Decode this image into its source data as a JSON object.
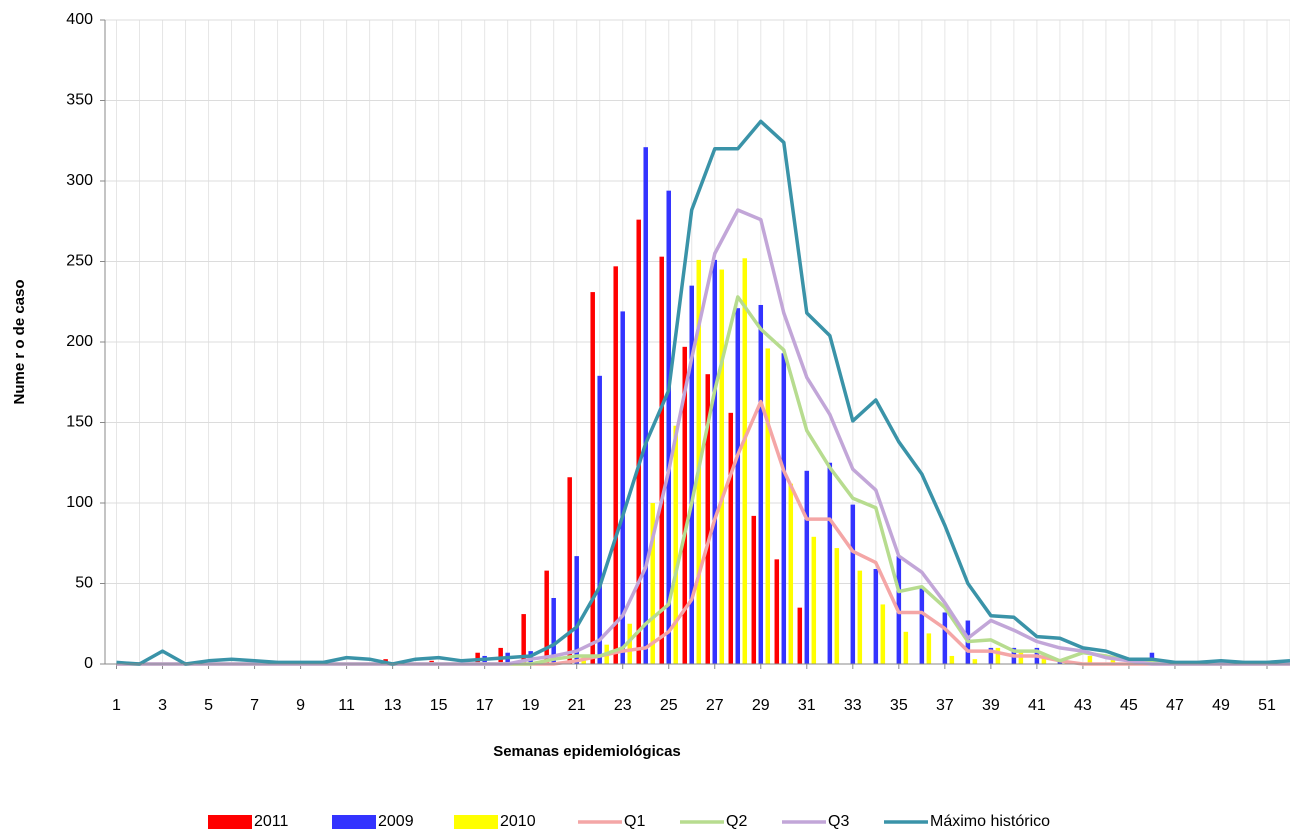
{
  "chart_data": {
    "type": "combo",
    "x_label": "Semanas epidemiológicas",
    "y_label": "Nume r o de caso",
    "x": [
      1,
      2,
      3,
      4,
      5,
      6,
      7,
      8,
      9,
      10,
      11,
      12,
      13,
      14,
      15,
      16,
      17,
      18,
      19,
      20,
      21,
      22,
      23,
      24,
      25,
      26,
      27,
      28,
      29,
      30,
      31,
      32,
      33,
      34,
      35,
      36,
      37,
      38,
      39,
      40,
      41,
      42,
      43,
      44,
      45,
      46,
      47,
      48,
      49,
      50,
      51,
      52
    ],
    "xlim": [
      0.5,
      52
    ],
    "xticks": [
      1,
      3,
      5,
      7,
      9,
      11,
      13,
      15,
      17,
      19,
      21,
      23,
      25,
      27,
      29,
      31,
      33,
      35,
      37,
      39,
      41,
      43,
      45,
      47,
      49,
      51
    ],
    "ylim": [
      0,
      400
    ],
    "yticks": [
      0,
      50,
      100,
      150,
      200,
      250,
      300,
      350,
      400
    ],
    "grid": true,
    "legend": "bottom",
    "series": [
      {
        "name": "2011",
        "type": "bar",
        "color": "#ff0000",
        "values": [
          0,
          0,
          0,
          0,
          0,
          0,
          0,
          0,
          0,
          0,
          0,
          0,
          3,
          0,
          2,
          0,
          7,
          10,
          31,
          58,
          116,
          231,
          247,
          276,
          253,
          197,
          180,
          156,
          92,
          65,
          35,
          0,
          0,
          0,
          0,
          0,
          0,
          0,
          0,
          0,
          0,
          0,
          0,
          0,
          0,
          0,
          0,
          0,
          0,
          0,
          0,
          0
        ]
      },
      {
        "name": "2009",
        "type": "bar",
        "color": "#3333ff",
        "values": [
          0,
          0,
          0,
          0,
          0,
          0,
          0,
          0,
          0,
          0,
          0,
          0,
          0,
          0,
          0,
          0,
          5,
          7,
          8,
          41,
          67,
          179,
          219,
          321,
          294,
          235,
          251,
          221,
          223,
          193,
          120,
          125,
          99,
          59,
          67,
          47,
          32,
          27,
          10,
          10,
          10,
          2,
          0,
          0,
          0,
          7,
          0,
          0,
          0,
          0,
          0,
          0
        ]
      },
      {
        "name": "2010",
        "type": "bar",
        "color": "#ffff00",
        "values": [
          0,
          0,
          0,
          0,
          0,
          0,
          0,
          0,
          0,
          0,
          0,
          0,
          0,
          0,
          0,
          0,
          0,
          0,
          0,
          0,
          5,
          12,
          25,
          100,
          148,
          251,
          245,
          252,
          196,
          112,
          79,
          72,
          58,
          37,
          20,
          19,
          5,
          3,
          10,
          8,
          5,
          2,
          5,
          3,
          0,
          0,
          0,
          0,
          0,
          0,
          0,
          0
        ]
      },
      {
        "name": "Q1",
        "type": "line",
        "color": "#f4a6a6",
        "values": [
          0,
          0,
          0,
          0,
          0,
          0,
          0,
          0,
          0,
          0,
          0,
          0,
          0,
          0,
          0,
          0,
          0,
          0,
          0,
          0,
          2,
          5,
          8,
          10,
          20,
          40,
          90,
          130,
          163,
          120,
          90,
          90,
          70,
          63,
          32,
          32,
          22,
          8,
          8,
          5,
          5,
          2,
          0,
          0,
          0,
          0,
          0,
          0,
          0,
          0,
          0,
          0
        ]
      },
      {
        "name": "Q2",
        "type": "line",
        "color": "#b7dc8f",
        "values": [
          0,
          0,
          0,
          0,
          0,
          0,
          0,
          0,
          0,
          0,
          0,
          0,
          0,
          0,
          0,
          0,
          0,
          0,
          0,
          3,
          5,
          5,
          10,
          25,
          37,
          100,
          170,
          228,
          208,
          195,
          145,
          122,
          103,
          97,
          45,
          48,
          35,
          14,
          15,
          8,
          8,
          2,
          7,
          5,
          2,
          1,
          0,
          0,
          0,
          0,
          0,
          0
        ]
      },
      {
        "name": "Q3",
        "type": "line",
        "color": "#c2a6d8",
        "values": [
          0,
          0,
          0,
          0,
          0,
          0,
          0,
          0,
          0,
          0,
          0,
          0,
          0,
          0,
          0,
          0,
          0,
          0,
          3,
          5,
          8,
          15,
          30,
          60,
          120,
          190,
          255,
          282,
          276,
          218,
          178,
          155,
          121,
          108,
          67,
          57,
          38,
          16,
          27,
          21,
          14,
          10,
          8,
          4,
          2,
          0,
          0,
          0,
          0,
          0,
          0,
          0
        ]
      },
      {
        "name": "Máximo histórico",
        "type": "line",
        "color": "#3a93a8",
        "values": [
          1,
          0,
          8,
          0,
          2,
          3,
          2,
          1,
          1,
          1,
          4,
          3,
          0,
          3,
          4,
          2,
          3,
          4,
          5,
          12,
          23,
          48,
          92,
          137,
          170,
          282,
          320,
          320,
          337,
          324,
          218,
          204,
          151,
          164,
          138,
          118,
          86,
          50,
          30,
          29,
          17,
          16,
          10,
          8,
          3,
          3,
          1,
          1,
          2,
          1,
          1,
          2
        ]
      }
    ]
  }
}
